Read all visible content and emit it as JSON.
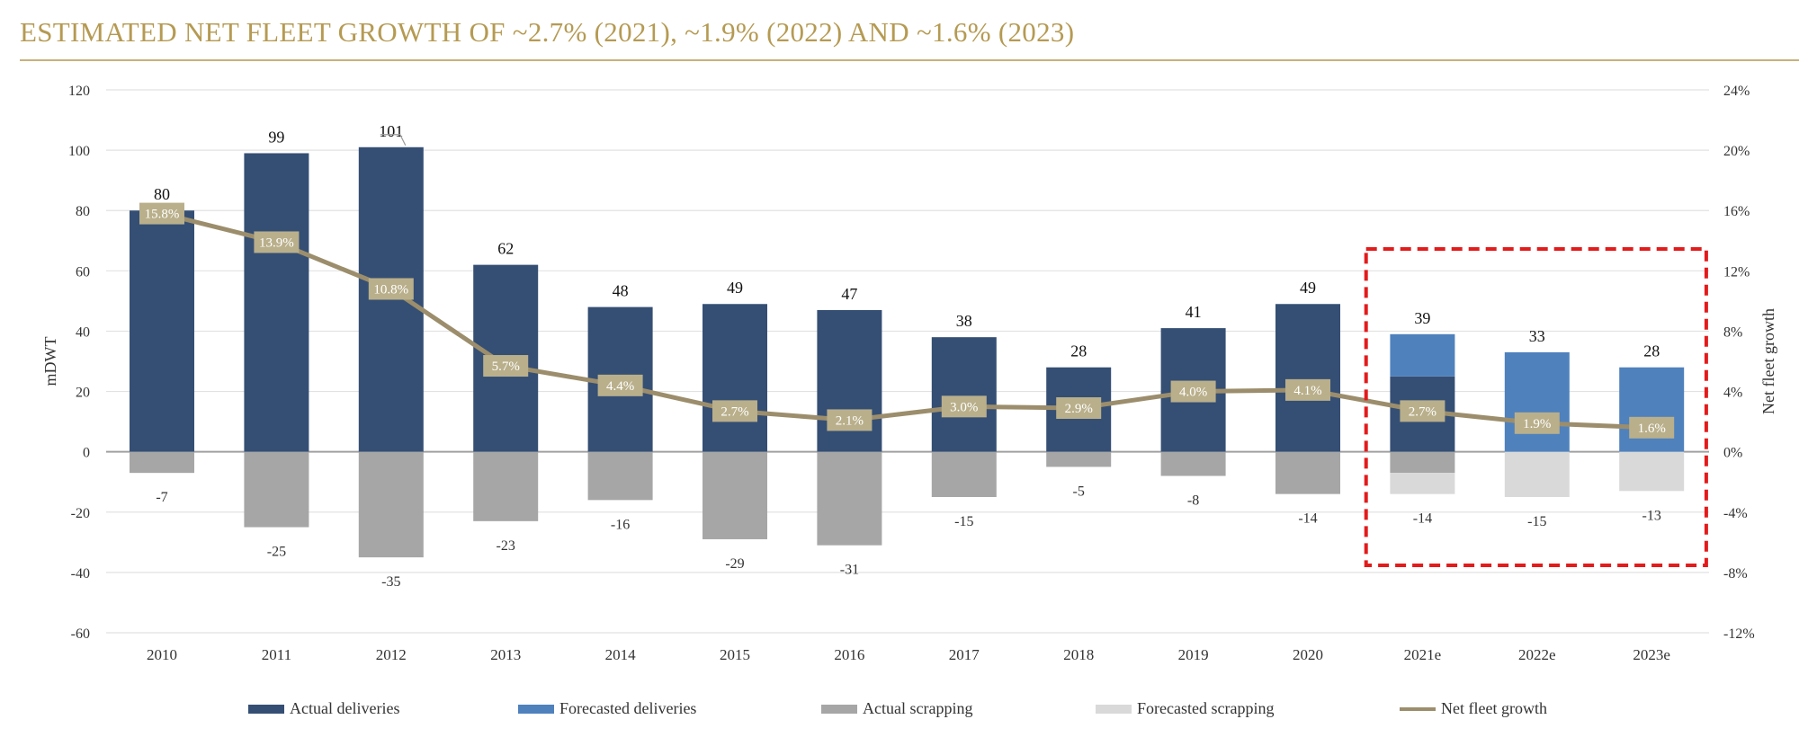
{
  "title": "ESTIMATED NET FLEET GROWTH OF ~2.7% (2021), ~1.9% (2022) AND ~1.6% (2023)",
  "colors": {
    "actual_deliveries": "#354F74",
    "forecasted_deliveries": "#4F81BD",
    "actual_scrapping": "#A6A6A6",
    "forecasted_scrapping": "#D9D9D9",
    "net_fleet_growth": "#9C8E6C",
    "label_box": "#B9AF8B",
    "highlight": "#E31B1B",
    "title": "#B59A52"
  },
  "chart_data": {
    "type": "bar",
    "categories": [
      "2010",
      "2011",
      "2012",
      "2013",
      "2014",
      "2015",
      "2016",
      "2017",
      "2018",
      "2019",
      "2020",
      "2021e",
      "2022e",
      "2023e"
    ],
    "series": [
      {
        "name": "Actual deliveries",
        "values": [
          80,
          99,
          101,
          62,
          48,
          49,
          47,
          38,
          28,
          41,
          49,
          25,
          0,
          0
        ]
      },
      {
        "name": "Forecasted deliveries",
        "values": [
          0,
          0,
          0,
          0,
          0,
          0,
          0,
          0,
          0,
          0,
          0,
          14,
          33,
          28
        ]
      },
      {
        "name": "Actual scrapping",
        "values": [
          -7,
          -25,
          -35,
          -23,
          -16,
          -29,
          -31,
          -15,
          -5,
          -8,
          -14,
          -7,
          0,
          0
        ]
      },
      {
        "name": "Forecasted scrapping",
        "values": [
          0,
          0,
          0,
          0,
          0,
          0,
          0,
          0,
          0,
          0,
          0,
          -7,
          -15,
          -13
        ]
      },
      {
        "name": "Net fleet growth",
        "axis": "right",
        "values": [
          15.8,
          13.9,
          10.8,
          5.7,
          4.4,
          2.7,
          2.1,
          3.0,
          2.9,
          4.0,
          4.1,
          2.7,
          1.9,
          1.6
        ]
      }
    ],
    "delivery_totals": [
      "80",
      "99",
      "101",
      "62",
      "48",
      "49",
      "47",
      "38",
      "28",
      "41",
      "49",
      "39",
      "33",
      "28"
    ],
    "scrapping_totals": [
      "-7",
      "-25",
      "-35",
      "-23",
      "-16",
      "-29",
      "-31",
      "-15",
      "-5",
      "-8",
      "-14",
      "-14",
      "-15",
      "-13"
    ],
    "growth_labels": [
      "15.8%",
      "13.9%",
      "10.8%",
      "5.7%",
      "4.4%",
      "2.7%",
      "2.1%",
      "3.0%",
      "2.9%",
      "4.0%",
      "4.1%",
      "2.7%",
      "1.9%",
      "1.6%"
    ],
    "ylabel": "mDWT",
    "y2label": "Net fleet growth",
    "ylim": [
      -60,
      120
    ],
    "y_ticks": [
      "120",
      "100",
      "80",
      "60",
      "40",
      "20",
      "0",
      "-20",
      "-40",
      "-60"
    ],
    "y2lim": [
      -12,
      24
    ],
    "y2_ticks": [
      "24%",
      "20%",
      "16%",
      "12%",
      "8%",
      "4%",
      "0%",
      "-4%",
      "-8%",
      "-12%"
    ],
    "highlight_categories": [
      "2021e",
      "2022e",
      "2023e"
    ],
    "legend": [
      "Actual deliveries",
      "Forecasted deliveries",
      "Actual scrapping",
      "Forecasted scrapping",
      "Net fleet growth"
    ],
    "legend_position": "bottom",
    "grid": true
  }
}
